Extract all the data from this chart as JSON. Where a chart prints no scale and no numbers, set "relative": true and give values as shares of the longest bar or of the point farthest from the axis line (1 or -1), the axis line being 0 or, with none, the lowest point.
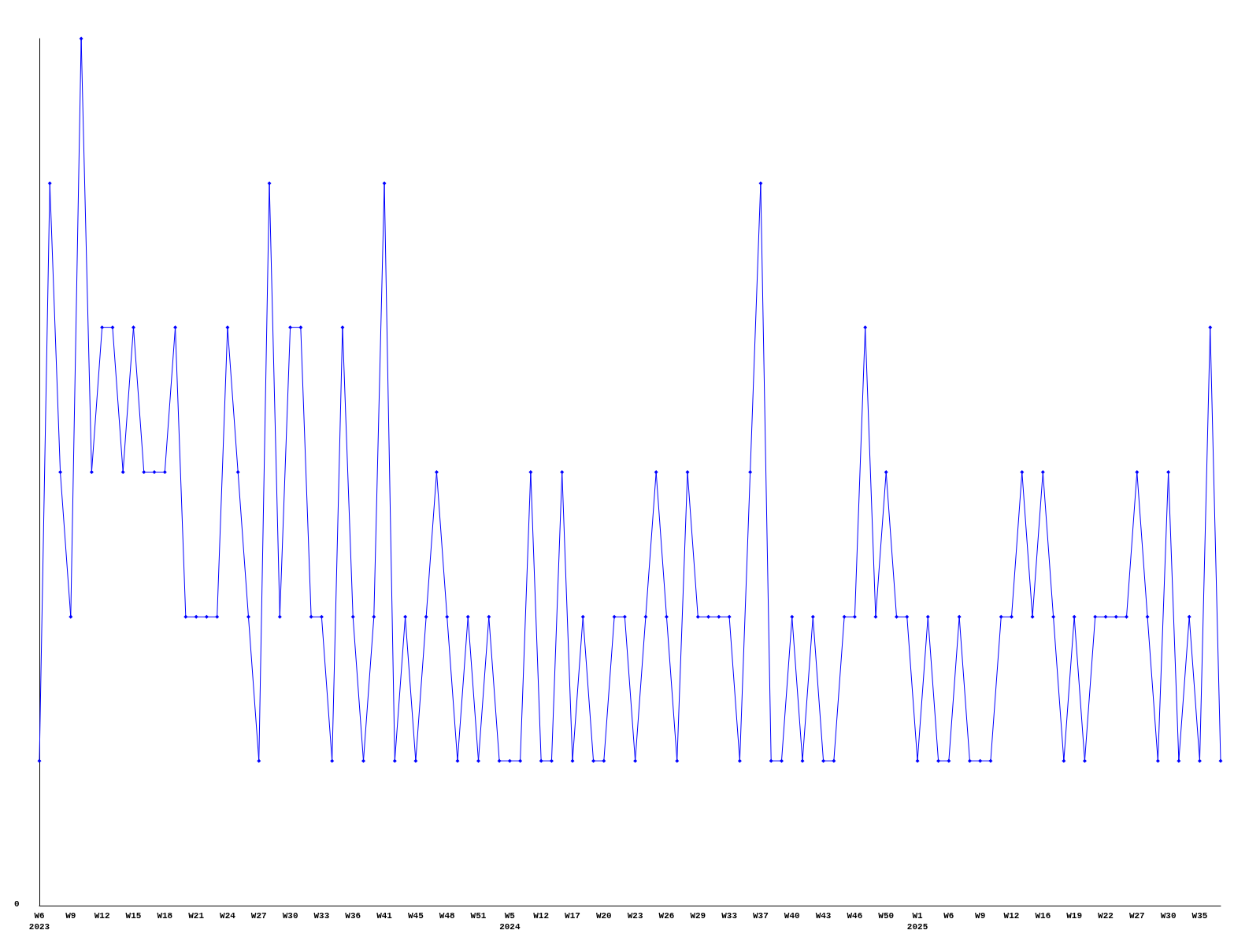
{
  "chart_data": {
    "type": "line",
    "relative": true,
    "marker": "diamond",
    "line_style": "solid",
    "grid": false,
    "annotations": [
      "0"
    ],
    "categories": [
      "W6\n2023",
      null,
      null,
      "W9",
      null,
      null,
      "W12",
      null,
      null,
      "W15",
      null,
      null,
      "W18",
      null,
      null,
      "W21",
      null,
      null,
      "W24",
      null,
      null,
      "W27",
      null,
      null,
      "W30",
      null,
      null,
      "W33",
      null,
      null,
      "W36",
      null,
      null,
      "W41",
      null,
      null,
      "W45",
      null,
      null,
      "W48",
      null,
      null,
      "W51",
      null,
      null,
      "W5\n2024",
      null,
      null,
      "W12",
      null,
      null,
      "W17",
      null,
      null,
      "W20",
      null,
      null,
      "W23",
      null,
      null,
      "W26",
      null,
      null,
      "W29",
      null,
      null,
      "W33",
      null,
      null,
      "W37",
      null,
      null,
      "W40",
      null,
      null,
      "W43",
      null,
      null,
      "W46",
      null,
      null,
      "W50",
      null,
      null,
      "W1\n2025",
      null,
      null,
      "W6",
      null,
      null,
      "W9",
      null,
      null,
      "W12",
      null,
      null,
      "W16",
      null,
      null,
      "W19",
      null,
      null,
      "W22",
      null,
      null,
      "W27",
      null,
      null,
      "W30",
      null,
      null,
      "W35",
      null,
      null
    ],
    "series": [
      {
        "color": "#0000ff",
        "values": [
          0.167,
          0.833,
          0.5,
          0.333,
          1,
          0.5,
          0.667,
          0.667,
          0.5,
          0.667,
          0.5,
          0.5,
          0.5,
          0.667,
          0.333,
          0.333,
          0.333,
          0.333,
          0.667,
          0.5,
          0.333,
          0.167,
          0.833,
          0.333,
          0.667,
          0.667,
          0.333,
          0.333,
          0.167,
          0.667,
          0.333,
          0.167,
          0.333,
          0.833,
          0.167,
          0.333,
          0.167,
          0.333,
          0.5,
          0.333,
          0.167,
          0.333,
          0.167,
          0.333,
          0.167,
          0.167,
          0.167,
          0.5,
          0.167,
          0.167,
          0.5,
          0.167,
          0.333,
          0.167,
          0.167,
          0.333,
          0.333,
          0.167,
          0.333,
          0.5,
          0.333,
          0.167,
          0.5,
          0.333,
          0.333,
          0.333,
          0.333,
          0.167,
          0.5,
          0.833,
          0.167,
          0.167,
          0.333,
          0.167,
          0.333,
          0.167,
          0.167,
          0.333,
          0.333,
          0.667,
          0.333,
          0.5,
          0.333,
          0.333,
          0.167,
          0.333,
          0.167,
          0.167,
          0.333,
          0.167,
          0.167,
          0.167,
          0.333,
          0.333,
          0.5,
          0.333,
          0.5,
          0.333,
          0.167,
          0.333,
          0.167,
          0.333,
          0.333,
          0.333,
          0.333,
          0.5,
          0.333,
          0.167,
          0.5,
          0.167,
          0.333,
          0.167,
          0.667,
          0.167
        ]
      }
    ]
  }
}
